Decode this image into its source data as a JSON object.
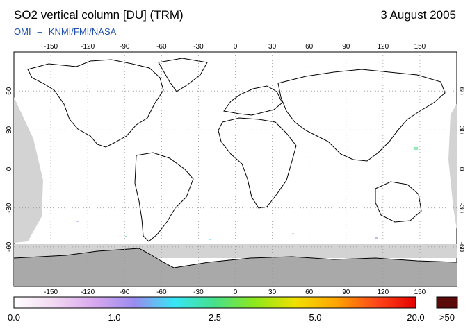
{
  "header": {
    "title": "SO2 vertical column [DU] (TRM)",
    "date": "3 August 2005",
    "credit_left": "OMI",
    "credit_sep": "–",
    "credit_right": "KNMI/FMI/NASA"
  },
  "map": {
    "lon_ticks": [
      "-150",
      "-120",
      "-90",
      "-60",
      "-30",
      "0",
      "30",
      "60",
      "90",
      "120",
      "150"
    ],
    "lon_values": [
      -150,
      -120,
      -90,
      -60,
      -30,
      0,
      30,
      60,
      90,
      120,
      150
    ],
    "lat_ticks": [
      "60",
      "30",
      "0",
      "-30",
      "-60"
    ],
    "lat_values": [
      60,
      30,
      0,
      -30,
      -60
    ],
    "lon_range": [
      -180,
      180
    ],
    "lat_range": [
      -90,
      90
    ],
    "grid": true,
    "colors": {
      "no_data": "#d3d3d3",
      "polar_night": "#a9a9a9",
      "coastline": "#000000",
      "grid": "#9a9a9a"
    }
  },
  "colorbar": {
    "labels": [
      "0.0",
      "1.0",
      "2.5",
      "5.0",
      "20.0",
      ">50"
    ],
    "label_positions": [
      0,
      0.25,
      0.5,
      0.75,
      1.0
    ],
    "stops": [
      "#ffffff",
      "#f2d8f2",
      "#d8a8ee",
      "#9a8cf0",
      "#36e6f6",
      "#46e08a",
      "#8ee81c",
      "#f0e000",
      "#ffa600",
      "#ff4a1a",
      "#e60000"
    ],
    "over_color": "#5a0a0a"
  }
}
